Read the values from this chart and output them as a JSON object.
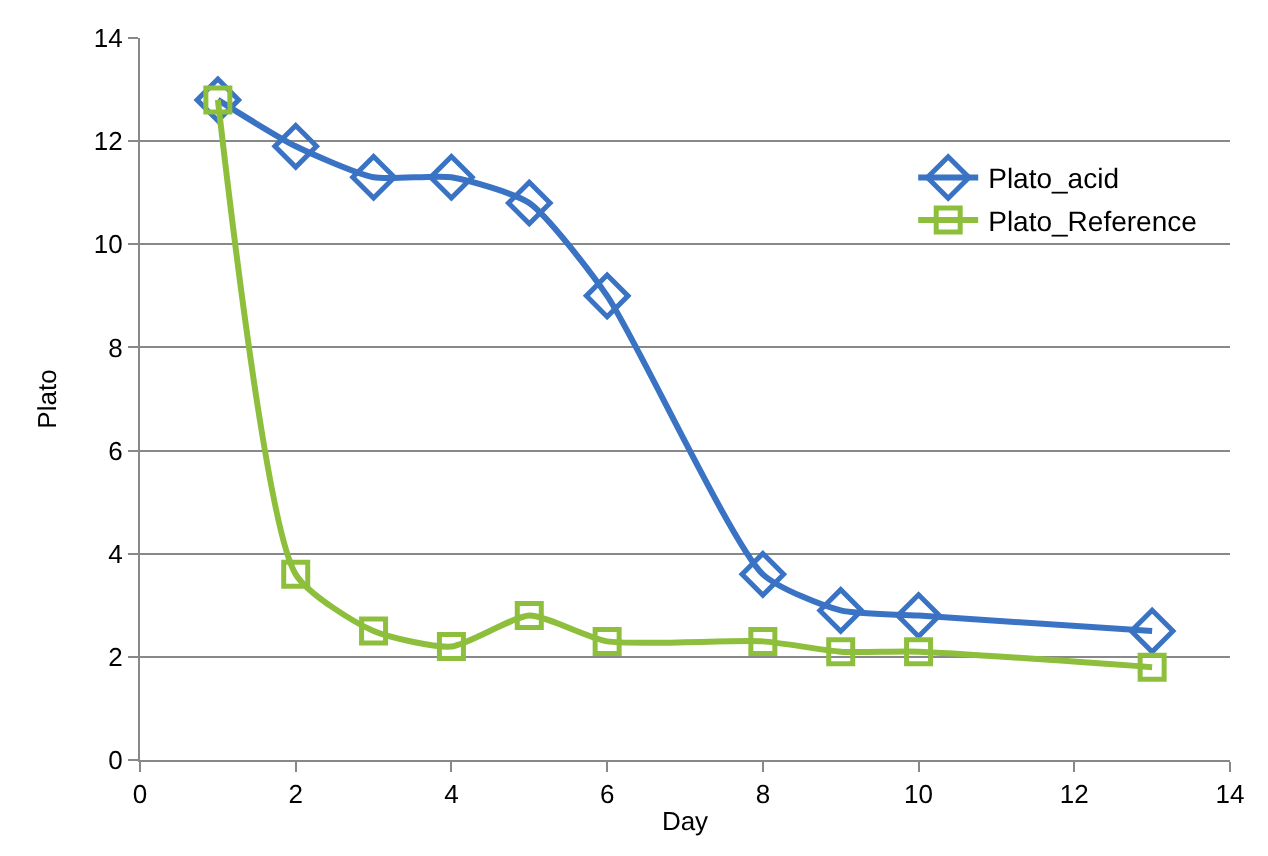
{
  "chart_data": {
    "type": "line",
    "xlabel": "Day",
    "ylabel": "Plato",
    "x": [
      1,
      2,
      3,
      4,
      5,
      6,
      8,
      9,
      10,
      13
    ],
    "series": [
      {
        "name": "Plato_acid",
        "color": "#3a73c4",
        "marker": "diamond",
        "values": [
          12.8,
          11.9,
          11.3,
          11.3,
          10.8,
          9.0,
          3.6,
          2.9,
          2.8,
          2.5
        ]
      },
      {
        "name": "Plato_Reference",
        "color": "#8dbf3c",
        "marker": "square",
        "values": [
          12.8,
          3.6,
          2.5,
          2.2,
          2.8,
          2.3,
          2.3,
          2.1,
          2.1,
          1.8
        ]
      }
    ],
    "xlim": [
      0,
      14
    ],
    "xticks": [
      0,
      2,
      4,
      6,
      8,
      10,
      12,
      14
    ],
    "ylim": [
      0,
      14
    ],
    "yticks": [
      0,
      2,
      4,
      6,
      8,
      10,
      12,
      14
    ],
    "grid": "y",
    "legend": "top right",
    "line_style": "solid"
  }
}
